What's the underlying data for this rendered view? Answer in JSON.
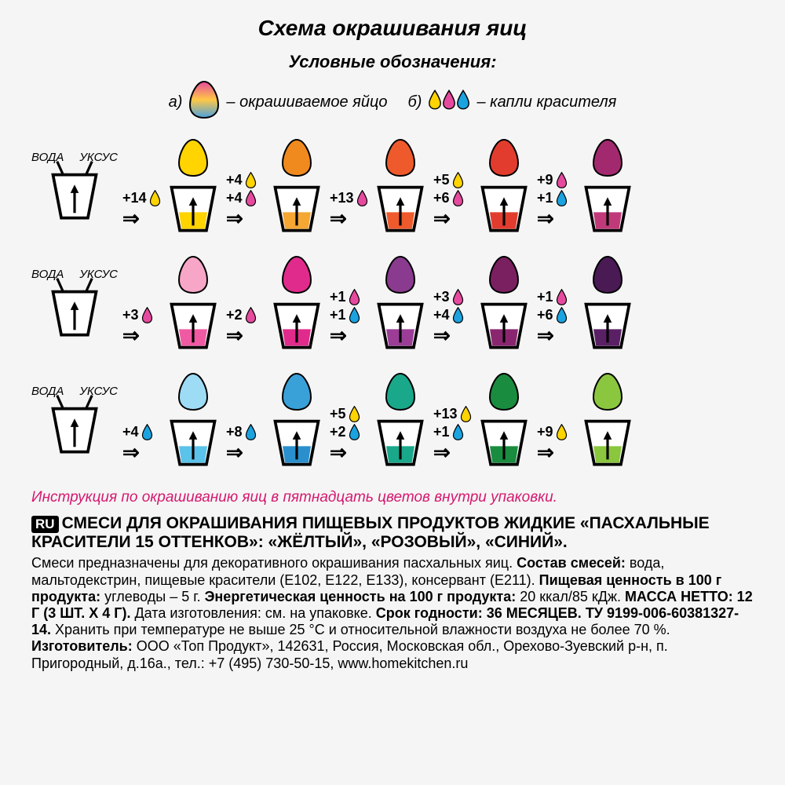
{
  "title": "Схема окрашивания яиц",
  "subtitle": "Условные обозначения:",
  "legend": {
    "a_letter": "а)",
    "a_text": "– окрашиваемое яйцо",
    "b_letter": "б)",
    "b_text": "– капли красителя",
    "egg_gradient": [
      "#e64a9e",
      "#ffc845",
      "#4aa0e0"
    ],
    "drops": [
      {
        "color": "#ffd400"
      },
      {
        "color": "#e64a9e"
      },
      {
        "color": "#1ba3e0"
      }
    ]
  },
  "wv": {
    "water": "ВОДА",
    "vinegar": "УКСУС"
  },
  "drop_colors": {
    "yellow": "#ffd400",
    "pink": "#e64a9e",
    "blue": "#1ba3e0"
  },
  "rows": [
    {
      "steps": [
        {
          "drops": [
            {
              "n": "+14",
              "c": "yellow"
            }
          ],
          "egg": "#ffd400",
          "fill": "#ffd400"
        },
        {
          "drops": [
            {
              "n": "+4",
              "c": "yellow"
            },
            {
              "n": "+4",
              "c": "pink"
            }
          ],
          "egg": "#f08a1e",
          "fill": "#f5a633"
        },
        {
          "drops": [
            {
              "n": "+13",
              "c": "pink"
            }
          ],
          "egg": "#ef5a2c",
          "fill": "#ef5a2c"
        },
        {
          "drops": [
            {
              "n": "+5",
              "c": "yellow"
            },
            {
              "n": "+6",
              "c": "pink"
            }
          ],
          "egg": "#e23c2e",
          "fill": "#e23c2e"
        },
        {
          "drops": [
            {
              "n": "+9",
              "c": "pink"
            },
            {
              "n": "+1",
              "c": "blue"
            }
          ],
          "egg": "#a3296f",
          "fill": "#c03a7a"
        }
      ]
    },
    {
      "steps": [
        {
          "drops": [
            {
              "n": "+3",
              "c": "pink"
            }
          ],
          "egg": "#f7a6c8",
          "fill": "#ef5aa3"
        },
        {
          "drops": [
            {
              "n": "+2",
              "c": "pink"
            }
          ],
          "egg": "#e02b8c",
          "fill": "#e02b8c"
        },
        {
          "drops": [
            {
              "n": "+1",
              "c": "pink"
            },
            {
              "n": "+1",
              "c": "blue"
            }
          ],
          "egg": "#8a3a8f",
          "fill": "#9b3d96"
        },
        {
          "drops": [
            {
              "n": "+3",
              "c": "pink"
            },
            {
              "n": "+4",
              "c": "blue"
            }
          ],
          "egg": "#7a2060",
          "fill": "#8a2670"
        },
        {
          "drops": [
            {
              "n": "+1",
              "c": "pink"
            },
            {
              "n": "+6",
              "c": "blue"
            }
          ],
          "egg": "#4a1a55",
          "fill": "#5a2065"
        }
      ]
    },
    {
      "steps": [
        {
          "drops": [
            {
              "n": "+4",
              "c": "blue"
            }
          ],
          "egg": "#9edcf5",
          "fill": "#5bc2ea"
        },
        {
          "drops": [
            {
              "n": "+8",
              "c": "blue"
            }
          ],
          "egg": "#3aa0d8",
          "fill": "#2a90cd"
        },
        {
          "drops": [
            {
              "n": "+5",
              "c": "yellow"
            },
            {
              "n": "+2",
              "c": "blue"
            }
          ],
          "egg": "#1aa88a",
          "fill": "#1aa88a"
        },
        {
          "drops": [
            {
              "n": "+13",
              "c": "yellow"
            },
            {
              "n": "+1",
              "c": "blue"
            }
          ],
          "egg": "#1a8c3f",
          "fill": "#1a8c3f"
        },
        {
          "drops": [
            {
              "n": "+9",
              "c": "yellow"
            }
          ],
          "egg": "#8bc63f",
          "fill": "#8bc63f"
        }
      ]
    }
  ],
  "note": "Инструкция по окрашиванию яиц в пятнадцать цветов внутри упаковки.",
  "ru": {
    "badge": "RU",
    "head1": "СМЕСИ ДЛЯ ОКРАШИВАНИЯ ПИЩЕВЫХ ПРОДУКТОВ ЖИДКИЕ «ПАСХАЛЬНЫЕ КРАСИТЕЛИ 15 ОТТЕНКОВ»: «ЖЁЛТЫЙ», «РОЗОВЫЙ», «СИНИЙ».",
    "body_pre": "Смеси предназначены для декоративного окрашивания пасхальных яиц. ",
    "sostav_label": "Состав смесей:",
    "sostav_text": " вода, мальтодекстрин, пищевые красители (E102, E122, E133), консервант (E211). ",
    "pish_label": "Пищевая ценность в 100 г продукта:",
    "pish_text": " углеводы – 5 г. ",
    "energ_label": "Энергетическая ценность на 100 г продукта:",
    "energ_text": " 20 ккал/85 кДж. ",
    "massa_label": "МАССА НЕТТО: 12 Г (3 ШТ. Х 4 Г).",
    "date_text": " Дата изготовления: см. на упаковке. ",
    "srok_label": "Срок годности: 36 МЕСЯЦЕВ.",
    "tu_label": " ТУ 9199-006-60381327-14.",
    "store_text": " Хранить при температуре не выше 25 °С и относительной влажности воздуха не более 70 %. ",
    "izg_label": "Изготовитель:",
    "izg_text": " ООО «Топ Продукт», 142631, Россия, Московская обл., Орехово-Зуевский р-н, п. Пригородный, д.16а., тел.: +7 (495) 730-50-15, www.homekitchen.ru"
  }
}
